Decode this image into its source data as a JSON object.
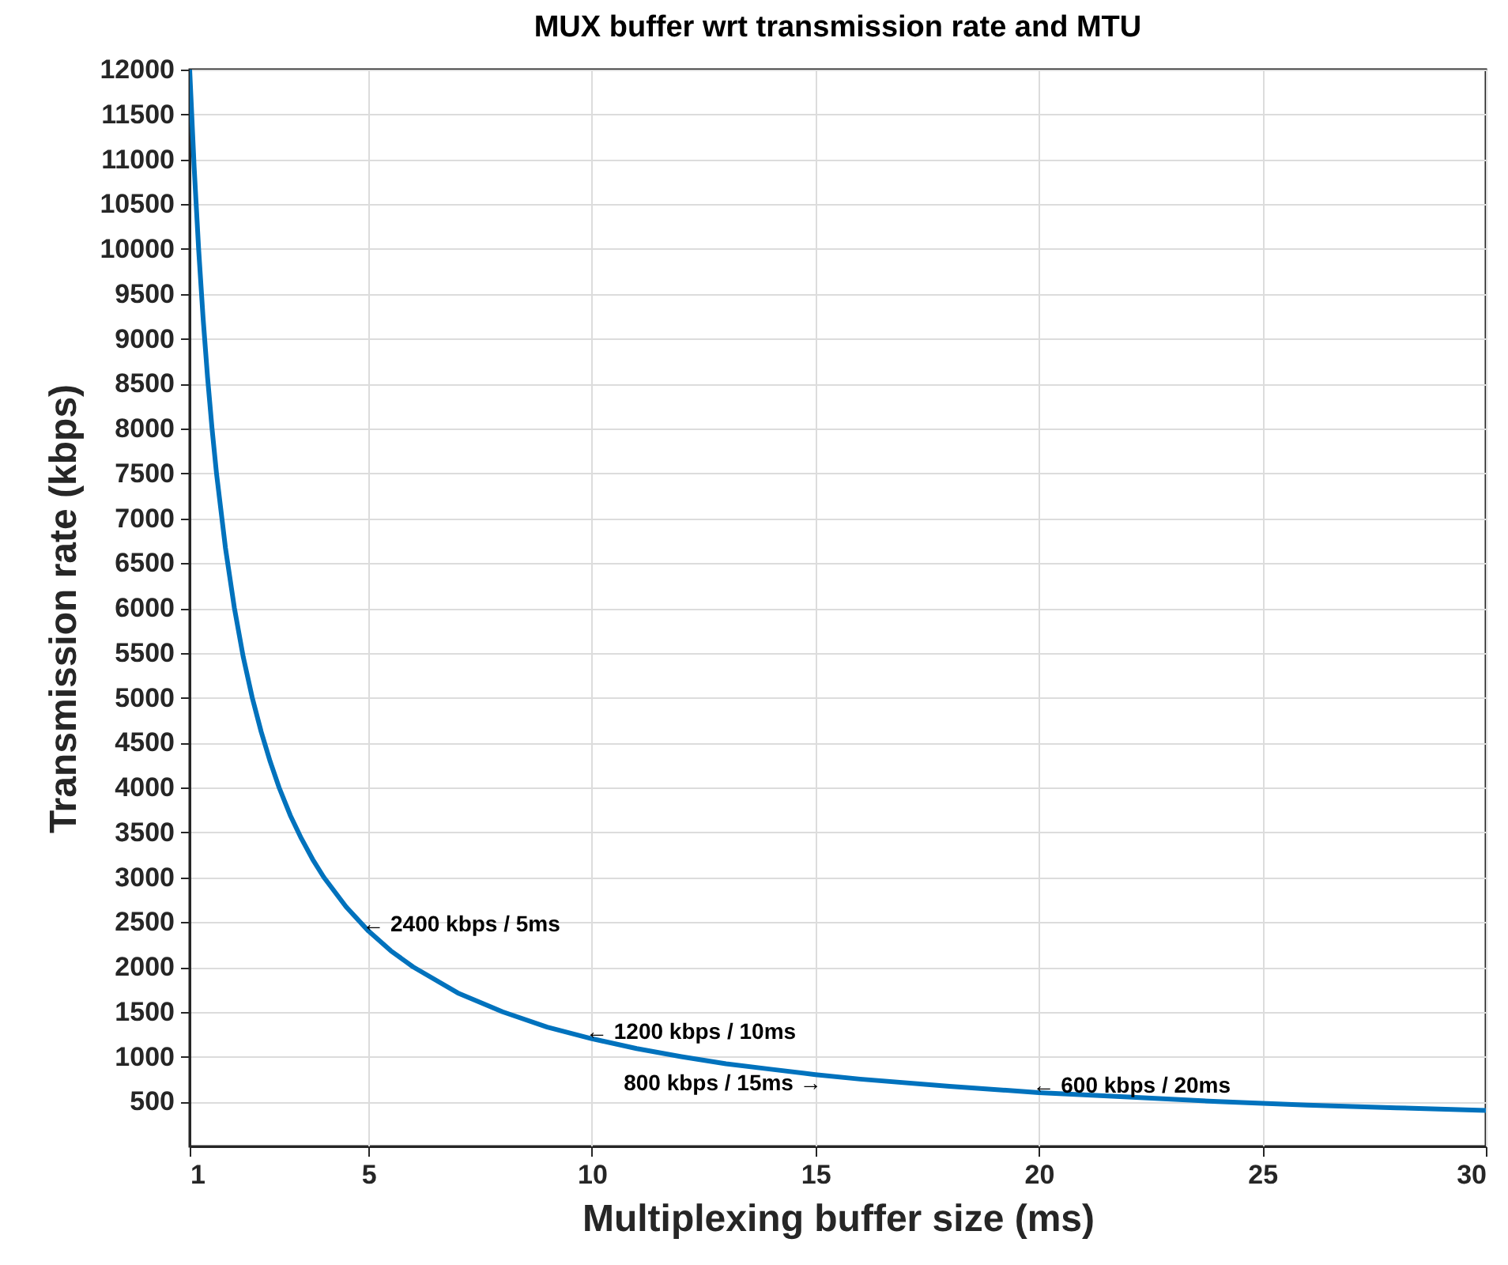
{
  "chart_data": {
    "type": "line",
    "title": "MUX buffer wrt transmission rate and MTU",
    "xlabel": "Multiplexing buffer size (ms)",
    "ylabel": "Transmission rate (kbps)",
    "x": [
      1,
      1.1,
      1.2,
      1.3,
      1.4,
      1.5,
      1.6,
      1.8,
      2,
      2.2,
      2.4,
      2.6,
      2.8,
      3,
      3.25,
      3.5,
      3.75,
      4,
      4.5,
      5,
      5.5,
      6,
      7,
      8,
      9,
      10,
      11,
      12,
      13,
      14,
      15,
      16,
      18,
      20,
      22,
      24,
      26,
      28,
      30
    ],
    "series": [
      {
        "color": "#0072bd",
        "values": [
          12000,
          10910,
          10000,
          9230,
          8570,
          8000,
          7500,
          6670,
          6000,
          5450,
          5000,
          4620,
          4290,
          4000,
          3690,
          3430,
          3200,
          3000,
          2670,
          2400,
          2180,
          2000,
          1710,
          1500,
          1330,
          1200,
          1090,
          1000,
          920,
          860,
          800,
          750,
          670,
          600,
          550,
          500,
          460,
          430,
          400
        ]
      }
    ],
    "xlim": [
      1,
      30
    ],
    "xticks": [
      1,
      5,
      10,
      15,
      20,
      25,
      30
    ],
    "ylim": [
      0,
      12000
    ],
    "yticks": [
      500,
      1000,
      1500,
      2000,
      2500,
      3000,
      3500,
      4000,
      4500,
      5000,
      5500,
      6000,
      6500,
      7000,
      7500,
      8000,
      8500,
      9000,
      9500,
      10000,
      10500,
      11000,
      11500,
      12000
    ],
    "grid": true,
    "marker": "none",
    "line_style": "solid",
    "annotations": [
      {
        "text": "← 2400 kbps / 5ms",
        "x": 5,
        "y": 2400
      },
      {
        "text": "← 1200 kbps / 10ms",
        "x": 10,
        "y": 1200
      },
      {
        "text": "800 kbps / 15ms →",
        "x": 15,
        "y": 800
      },
      {
        "text": "← 600 kbps / 20ms",
        "x": 20,
        "y": 600
      }
    ]
  }
}
